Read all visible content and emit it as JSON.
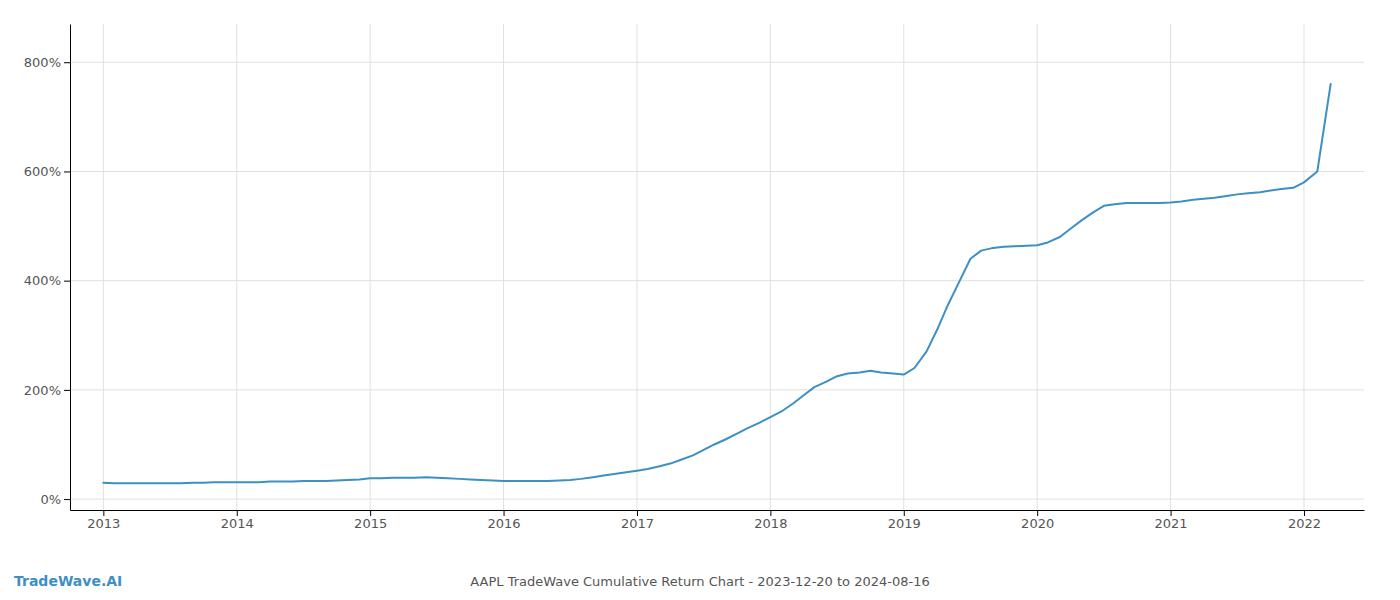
{
  "chart_data": {
    "type": "line",
    "title": "AAPL TradeWave Cumulative Return Chart - 2023-12-20 to 2024-08-16",
    "annotations": [
      "TradeWave.AI"
    ],
    "x": [
      2013.0,
      2013.08,
      2013.17,
      2013.25,
      2013.33,
      2013.42,
      2013.5,
      2013.58,
      2013.67,
      2013.75,
      2013.83,
      2013.92,
      2014.0,
      2014.08,
      2014.17,
      2014.25,
      2014.33,
      2014.42,
      2014.5,
      2014.58,
      2014.67,
      2014.75,
      2014.83,
      2014.92,
      2015.0,
      2015.08,
      2015.17,
      2015.25,
      2015.33,
      2015.42,
      2015.5,
      2015.58,
      2015.67,
      2015.75,
      2015.83,
      2015.92,
      2016.0,
      2016.08,
      2016.17,
      2016.25,
      2016.33,
      2016.42,
      2016.5,
      2016.58,
      2016.67,
      2016.75,
      2016.83,
      2016.92,
      2017.0,
      2017.08,
      2017.17,
      2017.25,
      2017.33,
      2017.42,
      2017.5,
      2017.58,
      2017.67,
      2017.75,
      2017.83,
      2017.92,
      2018.0,
      2018.08,
      2018.17,
      2018.25,
      2018.33,
      2018.42,
      2018.5,
      2018.58,
      2018.67,
      2018.75,
      2018.83,
      2018.92,
      2019.0,
      2019.08,
      2019.17,
      2019.25,
      2019.33,
      2019.42,
      2019.5,
      2019.58,
      2019.67,
      2019.75,
      2019.83,
      2019.92,
      2020.0,
      2020.08,
      2020.17,
      2020.25,
      2020.33,
      2020.42,
      2020.5,
      2020.58,
      2020.67,
      2020.75,
      2020.83,
      2020.92,
      2021.0,
      2021.08,
      2021.17,
      2021.25,
      2021.33,
      2021.42,
      2021.5,
      2021.58,
      2021.67,
      2021.75,
      2021.83,
      2021.92,
      2022.0,
      2022.1,
      2022.2
    ],
    "values": [
      30,
      29,
      29,
      29,
      29,
      29,
      29,
      29,
      30,
      30,
      31,
      31,
      31,
      31,
      31,
      32,
      32,
      32,
      33,
      33,
      33,
      34,
      35,
      36,
      38,
      38,
      39,
      39,
      39,
      40,
      39,
      38,
      37,
      36,
      35,
      34,
      33,
      33,
      33,
      33,
      33,
      34,
      35,
      37,
      40,
      43,
      46,
      49,
      52,
      55,
      60,
      65,
      72,
      80,
      90,
      100,
      110,
      120,
      130,
      140,
      150,
      160,
      175,
      190,
      205,
      215,
      225,
      230,
      232,
      235,
      232,
      230,
      228,
      240,
      270,
      310,
      355,
      400,
      440,
      455,
      460,
      462,
      463,
      464,
      465,
      470,
      480,
      495,
      510,
      525,
      537,
      540,
      542,
      542,
      542,
      542,
      543,
      545,
      548,
      550,
      552,
      555,
      558,
      560,
      562,
      565,
      568,
      570,
      580,
      600,
      760
    ],
    "color": "#3d8fc4",
    "xlim": [
      2012.75,
      2022.45
    ],
    "ylim": [
      -20,
      870
    ],
    "xticks": [
      2013,
      2014,
      2015,
      2016,
      2017,
      2018,
      2019,
      2020,
      2021,
      2022
    ],
    "yticks": [
      {
        "value": 0,
        "label": "0%"
      },
      {
        "value": 200,
        "label": "200%"
      },
      {
        "value": 400,
        "label": "400%"
      },
      {
        "value": 600,
        "label": "600%"
      },
      {
        "value": 800,
        "label": "800%"
      }
    ],
    "grid": true
  }
}
